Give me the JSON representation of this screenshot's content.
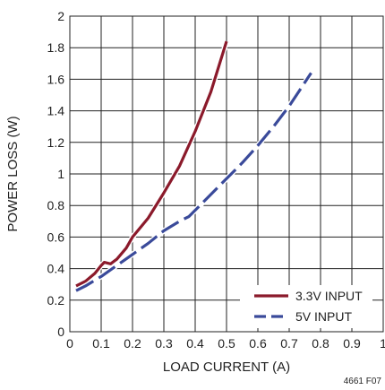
{
  "chart_data": {
    "type": "line",
    "xlabel": "LOAD CURRENT (A)",
    "ylabel": "POWER LOSS (W)",
    "xlim": [
      0,
      1
    ],
    "ylim": [
      0,
      2
    ],
    "x_ticks": [
      "0",
      "0.1",
      "0.2",
      "0.3",
      "0.4",
      "0.5",
      "0.6",
      "0.7",
      "0.8",
      "0.9",
      "1"
    ],
    "y_ticks": [
      "0",
      "0.2",
      "0.4",
      "0.6",
      "0.8",
      "1",
      "1.2",
      "1.4",
      "1.6",
      "1.8",
      "2"
    ],
    "grid": true,
    "legend_position": "bottom-right",
    "figure_id": "4661 F07",
    "series": [
      {
        "name": "3.3V INPUT",
        "color": "#8b1a2b",
        "style": "solid",
        "x": [
          0.02,
          0.05,
          0.08,
          0.1,
          0.11,
          0.13,
          0.15,
          0.18,
          0.2,
          0.25,
          0.3,
          0.35,
          0.4,
          0.45,
          0.5
        ],
        "y": [
          0.29,
          0.32,
          0.37,
          0.42,
          0.44,
          0.43,
          0.46,
          0.53,
          0.6,
          0.72,
          0.88,
          1.05,
          1.27,
          1.52,
          1.84
        ]
      },
      {
        "name": "5V INPUT",
        "color": "#3a4a9a",
        "style": "dashed",
        "x": [
          0.02,
          0.05,
          0.1,
          0.15,
          0.2,
          0.25,
          0.3,
          0.35,
          0.38,
          0.4,
          0.45,
          0.5,
          0.55,
          0.6,
          0.65,
          0.7,
          0.75,
          0.77
        ],
        "y": [
          0.26,
          0.29,
          0.35,
          0.42,
          0.49,
          0.56,
          0.64,
          0.7,
          0.73,
          0.77,
          0.87,
          0.97,
          1.07,
          1.18,
          1.3,
          1.43,
          1.58,
          1.64
        ]
      }
    ]
  }
}
